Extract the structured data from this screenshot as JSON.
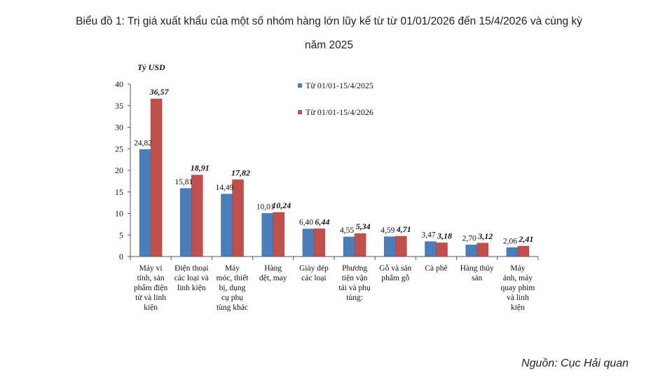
{
  "title_line1": "Biểu đồ 1: Trị giá xuất khẩu của một số nhóm hàng lớn lũy kế từ từ 01/01/2026 đến 15/4/2026 và cùng kỳ",
  "title_line2": "năm 2025",
  "source": "Nguồn: Cục Hải quan",
  "colors": {
    "series1": "#4a7ebb",
    "series2": "#c0504d"
  },
  "chart_data": {
    "type": "bar",
    "ylabel": "Tỷ USD",
    "ylim": [
      0,
      40
    ],
    "yticks": [
      "0",
      "5",
      "10",
      "15",
      "20",
      "25",
      "30",
      "35",
      "40"
    ],
    "grid": false,
    "legend_position": "top-center",
    "categories": [
      [
        "Máy vi",
        "tính, sản",
        "phẩm điện",
        "tử và linh",
        "kiện"
      ],
      [
        "Điện thoại",
        "các loại và",
        "linh kiện"
      ],
      [
        "Máy",
        "móc, thiết",
        "bị, dụng",
        "cụ phụ",
        "tùng khác"
      ],
      [
        "Hàng",
        "dệt, may"
      ],
      [
        "Giày dép",
        "các loại"
      ],
      [
        "Phương",
        "tiện vận",
        "tải và phụ",
        "tùng:"
      ],
      [
        "Gỗ và sản",
        "phẩm gỗ"
      ],
      [
        "Cà phê"
      ],
      [
        "Hàng thủy",
        "sản"
      ],
      [
        "Máy",
        "ảnh, máy",
        "quay phim",
        "và linh",
        "kiện"
      ]
    ],
    "series": [
      {
        "name": "Từ 01/01-15/4/2025",
        "values": [
          24.82,
          15.81,
          14.49,
          10.01,
          6.4,
          4.55,
          4.59,
          3.47,
          2.7,
          2.06
        ],
        "labels": [
          "24,82",
          "15,81",
          "14,49",
          "10,01",
          "6,40",
          "4,55",
          "4,59",
          "3,47",
          "2,70",
          "2,06"
        ]
      },
      {
        "name": "Từ 01/01-15/4/2026",
        "values": [
          36.57,
          18.91,
          17.82,
          10.24,
          6.44,
          5.34,
          4.71,
          3.18,
          3.12,
          2.41
        ],
        "labels": [
          "36,57",
          "18,91",
          "17,82",
          "10,24",
          "6,44",
          "5,34",
          "4,71",
          "3,18",
          "3,12",
          "2,41"
        ]
      }
    ]
  }
}
